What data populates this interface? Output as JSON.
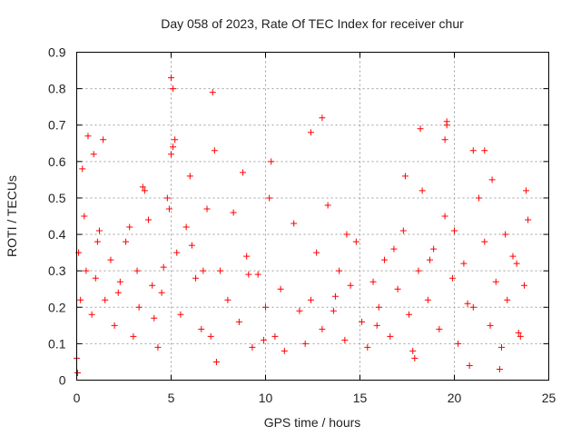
{
  "chart_data": {
    "type": "scatter",
    "title": "Day 058 of 2023, Rate Of TEC Index for receiver chur",
    "xlabel": "GPS time / hours",
    "ylabel": "ROTI / TECUs",
    "xlim": [
      0,
      25
    ],
    "ylim": [
      0,
      0.9
    ],
    "xticks": [
      0,
      5,
      10,
      15,
      20,
      25
    ],
    "xtick_labels": [
      "0",
      "5",
      "10",
      "15",
      "20",
      "25"
    ],
    "yticks": [
      0,
      0.1,
      0.2,
      0.3,
      0.4,
      0.5,
      0.6,
      0.7,
      0.8,
      0.9
    ],
    "ytick_labels": [
      "0",
      "0.1",
      "0.2",
      "0.3",
      "0.4",
      "0.5",
      "0.6",
      "0.7",
      "0.8",
      "0.9"
    ],
    "grid": true,
    "marker": "+",
    "color": "#ff0000",
    "series": [
      {
        "name": "ROTI",
        "x": [
          0.0,
          0.1,
          0.2,
          0.4,
          0.5,
          0.8,
          1.0,
          1.2,
          1.5,
          1.8,
          2.0,
          2.3,
          2.6,
          3.0,
          3.3,
          3.6,
          3.8,
          4.0,
          4.3,
          4.6,
          4.9,
          5.0,
          5.1,
          5.2,
          5.3,
          5.5,
          5.8,
          6.0,
          6.3,
          6.6,
          6.9,
          7.1,
          7.3,
          7.4,
          7.6,
          8.0,
          8.3,
          8.6,
          9.0,
          9.3,
          9.6,
          10.0,
          10.2,
          10.5,
          10.8,
          11.0,
          11.5,
          12.1,
          12.4,
          12.7,
          13.0,
          13.3,
          13.6,
          13.9,
          14.2,
          14.5,
          14.8,
          15.1,
          15.4,
          15.7,
          16.0,
          16.3,
          16.6,
          17.0,
          17.3,
          17.6,
          17.9,
          18.1,
          18.3,
          18.6,
          18.9,
          19.2,
          19.5,
          19.6,
          19.9,
          20.2,
          20.5,
          20.8,
          21.0,
          21.3,
          21.6,
          21.9,
          22.2,
          22.5,
          22.8,
          23.1,
          23.4,
          23.7,
          23.9,
          0.3,
          0.6,
          1.4,
          2.8,
          3.5,
          4.8,
          5.0,
          5.1,
          7.2,
          12.4,
          13.0,
          18.2,
          19.6,
          19.5,
          21.0,
          21.6,
          22.0,
          0.9,
          1.1,
          3.2,
          4.5,
          6.1,
          8.8,
          9.1,
          10.3,
          14.3,
          16.8,
          17.4,
          18.7,
          20.0,
          22.7,
          23.3,
          23.8,
          0.05,
          2.2,
          4.1,
          6.7,
          9.9,
          11.8,
          13.7,
          15.9,
          17.8,
          20.7,
          22.4,
          23.5
        ],
        "y": [
          0.06,
          0.35,
          0.22,
          0.45,
          0.3,
          0.18,
          0.28,
          0.41,
          0.22,
          0.33,
          0.15,
          0.27,
          0.38,
          0.12,
          0.2,
          0.52,
          0.44,
          0.26,
          0.09,
          0.31,
          0.47,
          0.62,
          0.8,
          0.66,
          0.35,
          0.18,
          0.42,
          0.56,
          0.28,
          0.14,
          0.47,
          0.12,
          0.63,
          0.05,
          0.3,
          0.22,
          0.46,
          0.16,
          0.34,
          0.09,
          0.29,
          0.2,
          0.5,
          0.12,
          0.25,
          0.08,
          0.43,
          0.1,
          0.22,
          0.35,
          0.14,
          0.48,
          0.19,
          0.3,
          0.11,
          0.26,
          0.38,
          0.16,
          0.09,
          0.27,
          0.2,
          0.33,
          0.12,
          0.25,
          0.41,
          0.18,
          0.06,
          0.3,
          0.52,
          0.22,
          0.36,
          0.14,
          0.45,
          0.7,
          0.28,
          0.1,
          0.32,
          0.04,
          0.2,
          0.5,
          0.38,
          0.15,
          0.27,
          0.09,
          0.22,
          0.34,
          0.13,
          0.26,
          0.44,
          0.58,
          0.67,
          0.66,
          0.42,
          0.53,
          0.5,
          0.83,
          0.64,
          0.79,
          0.68,
          0.72,
          0.69,
          0.71,
          0.66,
          0.63,
          0.63,
          0.55,
          0.62,
          0.38,
          0.3,
          0.24,
          0.37,
          0.57,
          0.29,
          0.6,
          0.4,
          0.36,
          0.56,
          0.33,
          0.41,
          0.4,
          0.32,
          0.52,
          0.02,
          0.24,
          0.17,
          0.3,
          0.11,
          0.19,
          0.23,
          0.15,
          0.08,
          0.21,
          0.03,
          0.12
        ]
      }
    ]
  }
}
